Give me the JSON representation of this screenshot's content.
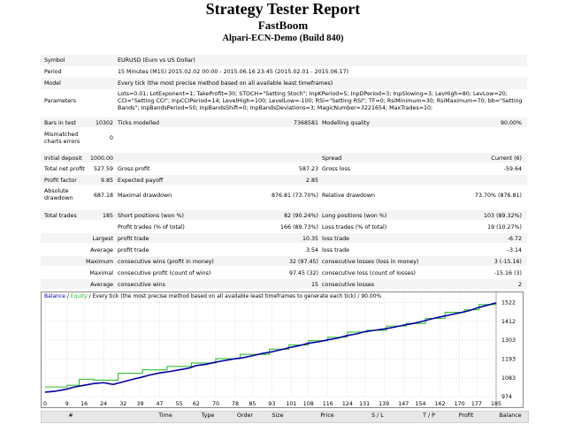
{
  "report": {
    "title": "Strategy Tester Report",
    "expert": "FastBoom",
    "account": "Alpari-ECN-Demo (Build 840)"
  },
  "settings": {
    "symbol_label": "Symbol",
    "symbol_value": "EURUSD (Euro vs US Dollar)",
    "period_label": "Period",
    "period_value": "15 Minutes (M15) 2015.02.02 00:00 - 2015.06.16 23:45 (2015.02.01 - 2015.06.17)",
    "model_label": "Model",
    "model_value": "Every tick (the most precise method based on all available least timeframes)",
    "parameters_label": "Parameters",
    "parameters_line1": "Lots=0.01; LotExponent=1; TakeProfit=30; STOCH=\"Setting Stoch\"; InpKPeriod=5; InpDPeriod=3; InpSlowing=3; LevHigh=80; LevLow=20;",
    "parameters_line2": "CCI=\"Setting CCI\"; InpCCIPeriod=14; LevelHigh=100; LevelLow=-100; RSI=\"Setting RSI\"; TF=0; RsiMinimum=30; RsiMaximum=70; bb=\"Setting",
    "parameters_line3": "Bands\"; InpBandsPeriod=50; InpBandsShift=0; InpBandsDeviations=3; MagicNumber=3221654; MaxTrades=10;"
  },
  "stats": {
    "bars_label": "Bars in test",
    "bars_value": "10302",
    "ticks_label": "Ticks modelled",
    "ticks_value": "7368581",
    "quality_label": "Modelling quality",
    "quality_value": "90.00%",
    "mismatch_label1": "Mismatched",
    "mismatch_label2": "charts errors",
    "mismatch_value": "0",
    "deposit_label": "Initial deposit",
    "deposit_value": "1000.00",
    "spread_label": "Spread",
    "spread_value": "Current (6)",
    "netprofit_label": "Total net profit",
    "netprofit_value": "527.59",
    "grossprofit_label": "Gross profit",
    "grossprofit_value": "587.23",
    "grossloss_label": "Gross loss",
    "grossloss_value": "-59.64",
    "pf_label": "Profit factor",
    "pf_value": "9.85",
    "payoff_label": "Expected payoff",
    "payoff_value": "2.85",
    "absdd_label1": "Absolute",
    "absdd_label2": "drawdown",
    "absdd_value": "687.18",
    "maxdd_label": "Maximal drawdown",
    "maxdd_value": "876.81 (73.70%)",
    "reldd_label": "Relative drawdown",
    "reldd_value": "73.70% (876.81)",
    "trades_label": "Total trades",
    "trades_value": "185",
    "short_label": "Short positions (won %)",
    "short_value": "82 (90.24%)",
    "long_label": "Long positions (won %)",
    "long_value": "103 (89.32%)",
    "pt_label": "Profit trades (% of total)",
    "pt_value": "166 (89.73%)",
    "lt_label": "Loss trades (% of total)",
    "lt_value": "19 (10.27%)",
    "largest_label": "Largest",
    "largest_pt_label": "profit trade",
    "largest_pt_value": "10.35",
    "largest_lt_label": "loss trade",
    "largest_lt_value": "-6.72",
    "average_label": "Average",
    "average_pt_label": "profit trade",
    "average_pt_value": "3.54",
    "average_lt_label": "loss trade",
    "average_lt_value": "-3.14",
    "maximum_label": "Maximum",
    "max_cw_label": "consecutive wins (profit in money)",
    "max_cw_value": "32 (97.45)",
    "max_cl_label": "consecutive losses (loss in money)",
    "max_cl_value": "3 (-15.16)",
    "maximal_label": "Maximal",
    "mx_cp_label": "consecutive profit (count of wins)",
    "mx_cp_value": "97.45 (32)",
    "mx_cl_label": "consecutive loss (count of losses)",
    "mx_cl_value": "-15.16 (3)",
    "average2_label": "Average",
    "avg_cw_label": "consecutive wins",
    "avg_cw_value": "15",
    "avg_cl_label": "consecutive losses",
    "avg_cl_value": "2"
  },
  "chart_legend": {
    "balance": "Balance",
    "sep": " / ",
    "equity": "Equity",
    "rest": " / Every tick (the most precise method based on all available least timeframes to generate each tick) / 90.00%"
  },
  "colors": {
    "balance": "#0000a0",
    "equity": "#33bb33",
    "grid": "#bfbfbf"
  },
  "chart_data": {
    "type": "line",
    "title": "",
    "xlabel": "",
    "ylabel": "",
    "x_ticks": [
      0,
      9,
      16,
      24,
      32,
      39,
      47,
      55,
      62,
      70,
      78,
      85,
      93,
      101,
      108,
      116,
      124,
      131,
      139,
      147,
      154,
      162,
      170,
      177,
      185
    ],
    "y_ticks": [
      974,
      1083,
      1193,
      1303,
      1412,
      1522
    ],
    "xlim": [
      0,
      185
    ],
    "ylim": [
      974,
      1540
    ],
    "series": [
      {
        "name": "Balance",
        "x": [
          0,
          4,
          9,
          12,
          16,
          20,
          24,
          28,
          32,
          36,
          39,
          43,
          47,
          51,
          55,
          59,
          62,
          66,
          70,
          74,
          78,
          81,
          85,
          89,
          93,
          97,
          101,
          104,
          108,
          112,
          116,
          120,
          124,
          128,
          131,
          135,
          139,
          143,
          147,
          151,
          154,
          158,
          162,
          166,
          170,
          174,
          177,
          181,
          185
        ],
        "values": [
          1000,
          1005,
          1018,
          1030,
          1040,
          1050,
          1055,
          1045,
          1060,
          1075,
          1085,
          1100,
          1112,
          1120,
          1130,
          1140,
          1155,
          1162,
          1175,
          1185,
          1195,
          1200,
          1212,
          1225,
          1235,
          1248,
          1262,
          1270,
          1285,
          1293,
          1305,
          1315,
          1330,
          1340,
          1352,
          1360,
          1368,
          1378,
          1390,
          1400,
          1410,
          1425,
          1438,
          1450,
          1462,
          1475,
          1490,
          1505,
          1520
        ]
      },
      {
        "name": "Equity",
        "x": [
          0,
          9,
          14,
          20,
          30,
          40,
          50,
          60,
          70,
          80,
          92,
          100,
          108,
          116,
          124,
          132,
          140,
          148,
          156,
          164,
          172,
          178,
          185
        ],
        "values": [
          1030,
          1040,
          1075,
          1070,
          1110,
          1130,
          1150,
          1170,
          1195,
          1220,
          1250,
          1275,
          1300,
          1320,
          1350,
          1360,
          1385,
          1400,
          1430,
          1465,
          1480,
          1510,
          1525
        ]
      }
    ]
  },
  "history_header": {
    "num": "#",
    "time": "Time",
    "type": "Type",
    "order": "Order",
    "size": "Size",
    "price": "Price",
    "sl": "S / L",
    "tp": "T / P",
    "profit": "Profit",
    "balance": "Balance"
  }
}
